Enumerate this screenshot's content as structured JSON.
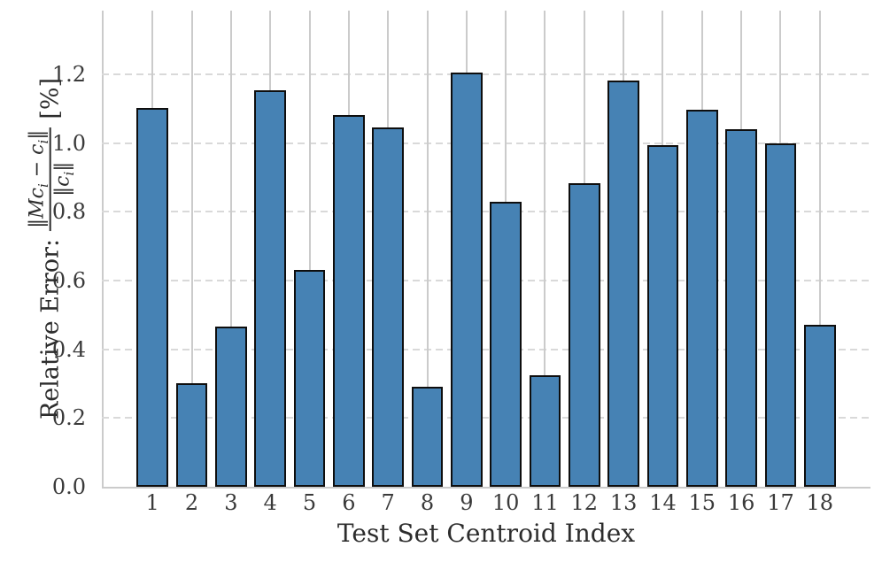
{
  "chart_data": {
    "type": "bar",
    "title": "",
    "xlabel": "Test Set Centroid Index",
    "ylabel_prefix": "Relative Error:",
    "ylabel_frac_numerator": [
      "‖Mc",
      "i",
      " − c",
      "i",
      "‖"
    ],
    "ylabel_frac_denominator": [
      "‖c",
      "i",
      "‖"
    ],
    "ylabel_suffix": "[%]",
    "categories": [
      "1",
      "2",
      "3",
      "4",
      "5",
      "6",
      "7",
      "8",
      "9",
      "10",
      "11",
      "12",
      "13",
      "14",
      "15",
      "16",
      "17",
      "18"
    ],
    "values": [
      1.103,
      0.301,
      0.466,
      1.154,
      0.63,
      1.081,
      1.046,
      0.291,
      1.205,
      0.828,
      0.325,
      0.883,
      1.182,
      0.994,
      1.097,
      1.04,
      0.999,
      0.472
    ],
    "ylim": [
      0,
      1.385
    ],
    "yticks": [
      0.0,
      0.2,
      0.4,
      0.6,
      0.8,
      1.0,
      1.2
    ],
    "xlim": [
      -0.29,
      19.29
    ],
    "bar_width_units": 0.8,
    "bar_fill_color": "#4682b4",
    "bar_edge_color": "#0e0e0e",
    "grid_color_solid": "#cbcbcb",
    "grid_color_dashed": "#d9d9d9",
    "text_color": "#3a3a3a",
    "legend": "none",
    "grid": "vertical-solid-per-bar, horizontal-dashed-per-ytick"
  }
}
